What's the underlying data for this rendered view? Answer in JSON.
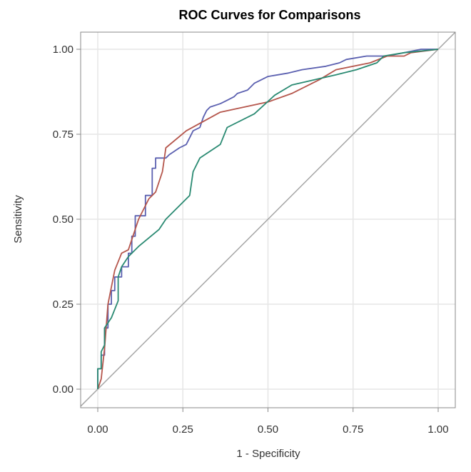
{
  "chart_data": {
    "type": "line",
    "title": "ROC Curves for Comparisons",
    "xlabel": "1 - Specificity",
    "ylabel": "Sensitivity",
    "xlim": [
      0,
      1
    ],
    "ylim": [
      0,
      1
    ],
    "grid": true,
    "xticks": [
      "0.00",
      "0.25",
      "0.50",
      "0.75",
      "1.00"
    ],
    "yticks": [
      "0.00",
      "0.25",
      "0.50",
      "0.75",
      "1.00"
    ],
    "xtick_values": [
      0,
      0.25,
      0.5,
      0.75,
      1
    ],
    "ytick_values": [
      0,
      0.25,
      0.5,
      0.75,
      1
    ],
    "reference_line": {
      "points": [
        [
          0,
          0
        ],
        [
          1,
          1
        ]
      ],
      "color": "#a6a6a6"
    },
    "series": [
      {
        "color": "#5b60b0",
        "points": [
          [
            0,
            0
          ],
          [
            0,
            0.06
          ],
          [
            0.01,
            0.06
          ],
          [
            0.01,
            0.1
          ],
          [
            0.02,
            0.1
          ],
          [
            0.02,
            0.18
          ],
          [
            0.03,
            0.18
          ],
          [
            0.03,
            0.25
          ],
          [
            0.04,
            0.25
          ],
          [
            0.04,
            0.29
          ],
          [
            0.05,
            0.29
          ],
          [
            0.05,
            0.33
          ],
          [
            0.07,
            0.33
          ],
          [
            0.07,
            0.36
          ],
          [
            0.09,
            0.36
          ],
          [
            0.09,
            0.4
          ],
          [
            0.1,
            0.4
          ],
          [
            0.1,
            0.45
          ],
          [
            0.11,
            0.45
          ],
          [
            0.11,
            0.51
          ],
          [
            0.14,
            0.51
          ],
          [
            0.14,
            0.57
          ],
          [
            0.16,
            0.57
          ],
          [
            0.16,
            0.65
          ],
          [
            0.17,
            0.65
          ],
          [
            0.17,
            0.68
          ],
          [
            0.2,
            0.68
          ],
          [
            0.21,
            0.69
          ],
          [
            0.24,
            0.71
          ],
          [
            0.26,
            0.72
          ],
          [
            0.27,
            0.74
          ],
          [
            0.28,
            0.76
          ],
          [
            0.3,
            0.77
          ],
          [
            0.31,
            0.8
          ],
          [
            0.32,
            0.82
          ],
          [
            0.33,
            0.83
          ],
          [
            0.36,
            0.84
          ],
          [
            0.38,
            0.85
          ],
          [
            0.4,
            0.86
          ],
          [
            0.41,
            0.87
          ],
          [
            0.44,
            0.88
          ],
          [
            0.46,
            0.9
          ],
          [
            0.48,
            0.91
          ],
          [
            0.5,
            0.92
          ],
          [
            0.56,
            0.93
          ],
          [
            0.6,
            0.94
          ],
          [
            0.67,
            0.95
          ],
          [
            0.71,
            0.96
          ],
          [
            0.73,
            0.97
          ],
          [
            0.79,
            0.98
          ],
          [
            0.85,
            0.98
          ],
          [
            0.9,
            0.99
          ],
          [
            0.95,
            1.0
          ],
          [
            1,
            1
          ]
        ]
      },
      {
        "color": "#b5564c",
        "points": [
          [
            0,
            0
          ],
          [
            0.01,
            0.03
          ],
          [
            0.02,
            0.12
          ],
          [
            0.03,
            0.25
          ],
          [
            0.05,
            0.35
          ],
          [
            0.07,
            0.4
          ],
          [
            0.09,
            0.41
          ],
          [
            0.12,
            0.5
          ],
          [
            0.15,
            0.56
          ],
          [
            0.17,
            0.58
          ],
          [
            0.19,
            0.64
          ],
          [
            0.2,
            0.71
          ],
          [
            0.26,
            0.76
          ],
          [
            0.36,
            0.815
          ],
          [
            0.5,
            0.845
          ],
          [
            0.57,
            0.87
          ],
          [
            0.65,
            0.91
          ],
          [
            0.7,
            0.94
          ],
          [
            0.8,
            0.96
          ],
          [
            0.85,
            0.98
          ],
          [
            0.9,
            0.98
          ],
          [
            0.92,
            0.99
          ],
          [
            1,
            1
          ]
        ]
      },
      {
        "color": "#2a8a72",
        "points": [
          [
            0,
            0
          ],
          [
            0,
            0.06
          ],
          [
            0.01,
            0.06
          ],
          [
            0.01,
            0.11
          ],
          [
            0.02,
            0.13
          ],
          [
            0.02,
            0.18
          ],
          [
            0.04,
            0.21
          ],
          [
            0.06,
            0.26
          ],
          [
            0.06,
            0.33
          ],
          [
            0.07,
            0.36
          ],
          [
            0.09,
            0.39
          ],
          [
            0.12,
            0.42
          ],
          [
            0.18,
            0.47
          ],
          [
            0.2,
            0.5
          ],
          [
            0.27,
            0.57
          ],
          [
            0.28,
            0.64
          ],
          [
            0.3,
            0.68
          ],
          [
            0.36,
            0.72
          ],
          [
            0.38,
            0.77
          ],
          [
            0.46,
            0.81
          ],
          [
            0.52,
            0.865
          ],
          [
            0.57,
            0.895
          ],
          [
            0.7,
            0.925
          ],
          [
            0.76,
            0.94
          ],
          [
            0.82,
            0.96
          ],
          [
            0.84,
            0.98
          ],
          [
            0.9,
            0.99
          ],
          [
            1,
            1
          ]
        ]
      }
    ]
  }
}
